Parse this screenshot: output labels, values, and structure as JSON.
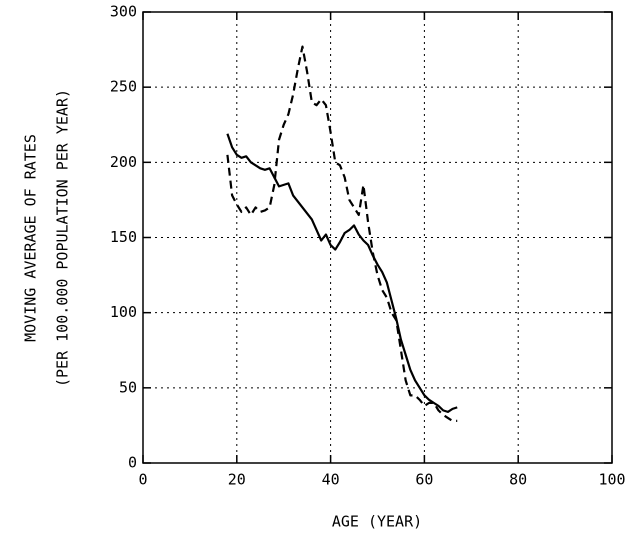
{
  "chart_data": {
    "type": "line",
    "x_label": "AGE (YEAR)",
    "y_label": [
      "MOVING AVERAGE OF RATES",
      "(PER 100.000 POPULATION PER YEAR)"
    ],
    "x": [
      18,
      19,
      20,
      21,
      22,
      23,
      24,
      25,
      26,
      27,
      28,
      29,
      30,
      31,
      32,
      33,
      34,
      35,
      36,
      37,
      38,
      39,
      40,
      41,
      42,
      43,
      44,
      45,
      46,
      47,
      48,
      49,
      50,
      51,
      52,
      53,
      54,
      55,
      56,
      57,
      58,
      59,
      60,
      61,
      62,
      63,
      64,
      65,
      66,
      67
    ],
    "series": [
      {
        "color": "#000000",
        "dash": "solid",
        "values": [
          219,
          210,
          205,
          203,
          204,
          200,
          198,
          196,
          195,
          196,
          190,
          184,
          185,
          186,
          178,
          174,
          170,
          166,
          162,
          155,
          148,
          152,
          145,
          142,
          147,
          153,
          155,
          158,
          152,
          148,
          145,
          138,
          132,
          127,
          120,
          108,
          96,
          82,
          72,
          62,
          55,
          50,
          45,
          42,
          40,
          38,
          35,
          34,
          36,
          37
        ]
      },
      {
        "color": "#000000",
        "dash": "dashed",
        "values": [
          205,
          178,
          172,
          167,
          170,
          165,
          170,
          167,
          168,
          170,
          185,
          215,
          225,
          232,
          245,
          262,
          277,
          260,
          240,
          238,
          242,
          238,
          220,
          200,
          198,
          190,
          175,
          170,
          165,
          185,
          160,
          140,
          125,
          115,
          110,
          100,
          95,
          75,
          55,
          45,
          45,
          42,
          38,
          40,
          40,
          35,
          32,
          30,
          28,
          28
        ]
      }
    ],
    "xlim": [
      0,
      100
    ],
    "xticks": [
      0,
      20,
      40,
      60,
      80,
      100
    ],
    "ylim": [
      0,
      300
    ],
    "yticks": [
      0,
      50,
      100,
      150,
      200,
      250,
      300
    ],
    "grid": true
  }
}
